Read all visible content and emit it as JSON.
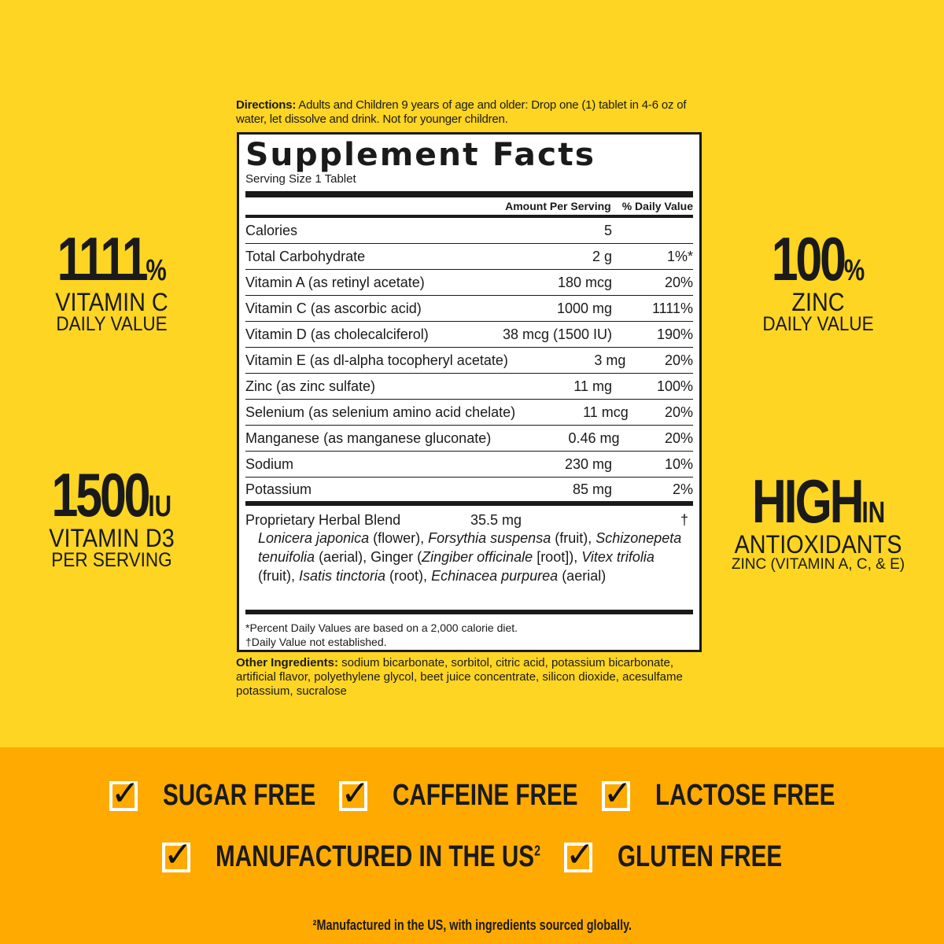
{
  "claims": {
    "vitc": {
      "value": "1111",
      "unit": "%",
      "line2": "VITAMIN C",
      "line3": "DAILY VALUE"
    },
    "d3": {
      "value": "1500",
      "unit": "IU",
      "line2": "VITAMIN D3",
      "line3": "PER SERVING"
    },
    "zinc": {
      "value": "100",
      "unit": "%",
      "line2": "ZINC",
      "line3": "DAILY VALUE"
    },
    "anti": {
      "value": "HIGH",
      "unit": "IN",
      "line2": "ANTIOXIDANTS",
      "line3": "ZINC (VITAMIN A, C, & E)"
    }
  },
  "directions": {
    "label": "Directions:",
    "text": " Adults and Children 9 years of age and older: Drop one (1) tablet in 4-6 oz of water, let dissolve and drink. Not for younger children."
  },
  "facts": {
    "title": "Supplement Facts",
    "serving": "Serving Size 1 Tablet",
    "col_amount": "Amount Per Serving",
    "col_dv": "% Daily Value",
    "rows": [
      {
        "name": "Calories",
        "amount": "5",
        "dv": ""
      },
      {
        "name": "Total Carbohydrate",
        "amount": "2 g",
        "dv": "1%*"
      },
      {
        "name": "Vitamin A (as retinyl acetate)",
        "amount": "180 mcg",
        "dv": "20%"
      },
      {
        "name": "Vitamin C (as ascorbic acid)",
        "amount": "1000 mg",
        "dv": "1111%"
      },
      {
        "name": "Vitamin D (as cholecalciferol)",
        "amount": "38 mcg (1500 IU)",
        "dv": "190%"
      },
      {
        "name": "Vitamin E (as dl-alpha tocopheryl acetate)",
        "amount": "3 mg",
        "dv": "20%"
      },
      {
        "name": "Zinc (as zinc sulfate)",
        "amount": "11 mg",
        "dv": "100%"
      },
      {
        "name": "Selenium (as selenium amino acid chelate)",
        "amount": "11 mcg",
        "dv": "20%"
      },
      {
        "name": "Manganese (as manganese gluconate)",
        "amount": "0.46 mg",
        "dv": "20%"
      },
      {
        "name": "Sodium",
        "amount": "230 mg",
        "dv": "10%"
      },
      {
        "name": "Potassium",
        "amount": "85 mg",
        "dv": "2%"
      }
    ],
    "blend": {
      "name": "Proprietary Herbal Blend",
      "amount": "35.5 mg",
      "dv": "†",
      "parts": [
        "Lonicera japonica",
        " (flower), ",
        "Forsythia suspensa",
        " (fruit), ",
        "Schizonepeta tenuifolia",
        " (aerial), Ginger (",
        "Zingiber officinale",
        " [root]), ",
        "Vitex trifolia",
        " (fruit), ",
        "Isatis tinctoria",
        " (root), ",
        "Echinacea purpurea",
        " (aerial)"
      ]
    },
    "foot1": "*Percent Daily Values are based on a 2,000 calorie diet.",
    "foot2": "†Daily Value not established."
  },
  "other": {
    "label": "Other Ingredients:",
    "text": " sodium bicarbonate, sorbitol, citric acid, potassium bicarbonate, artificial flavor, polyethylene glycol, beet juice concentrate, silicon dioxide, acesulfame potassium, sucralose"
  },
  "checks": [
    "SUGAR FREE",
    "CAFFEINE FREE",
    "LACTOSE FREE",
    "MANUFACTURED IN THE US",
    "GLUTEN FREE"
  ],
  "check_sup": "2",
  "footnote": "²Manufactured in the US, with ingredients sourced globally.",
  "colors": {
    "background": "#FDD522",
    "bottom_band": "#FFAA00",
    "text": "#1a1a1a"
  },
  "icons": {
    "check": "checkbox-checked-icon"
  }
}
